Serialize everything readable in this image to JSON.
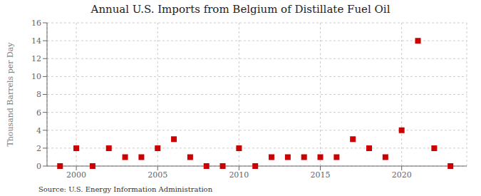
{
  "chart_data": {
    "type": "scatter",
    "title": "Annual U.S. Imports from Belgium of Distillate Fuel Oil",
    "ylabel": "Thousand Barrels per Day",
    "source": "Source: U.S. Energy Information Administration",
    "x": [
      1999,
      2000,
      2001,
      2002,
      2003,
      2004,
      2005,
      2006,
      2007,
      2008,
      2009,
      2010,
      2011,
      2012,
      2013,
      2014,
      2015,
      2016,
      2017,
      2018,
      2019,
      2020,
      2021,
      2022,
      2023
    ],
    "values": [
      0,
      2,
      0,
      2,
      1,
      1,
      2,
      3,
      1,
      0,
      0,
      2,
      0,
      1,
      1,
      1,
      1,
      1,
      3,
      2,
      1,
      4,
      14,
      2,
      0
    ],
    "color": "#cc0000",
    "marker": "square",
    "xlim": [
      1998.2,
      2024.0
    ],
    "xticks": [
      2000,
      2005,
      2010,
      2015,
      2020
    ],
    "ylim": [
      0,
      16
    ],
    "yticks": [
      0,
      2,
      4,
      6,
      8,
      10,
      12,
      14,
      16
    ],
    "grid": true
  }
}
